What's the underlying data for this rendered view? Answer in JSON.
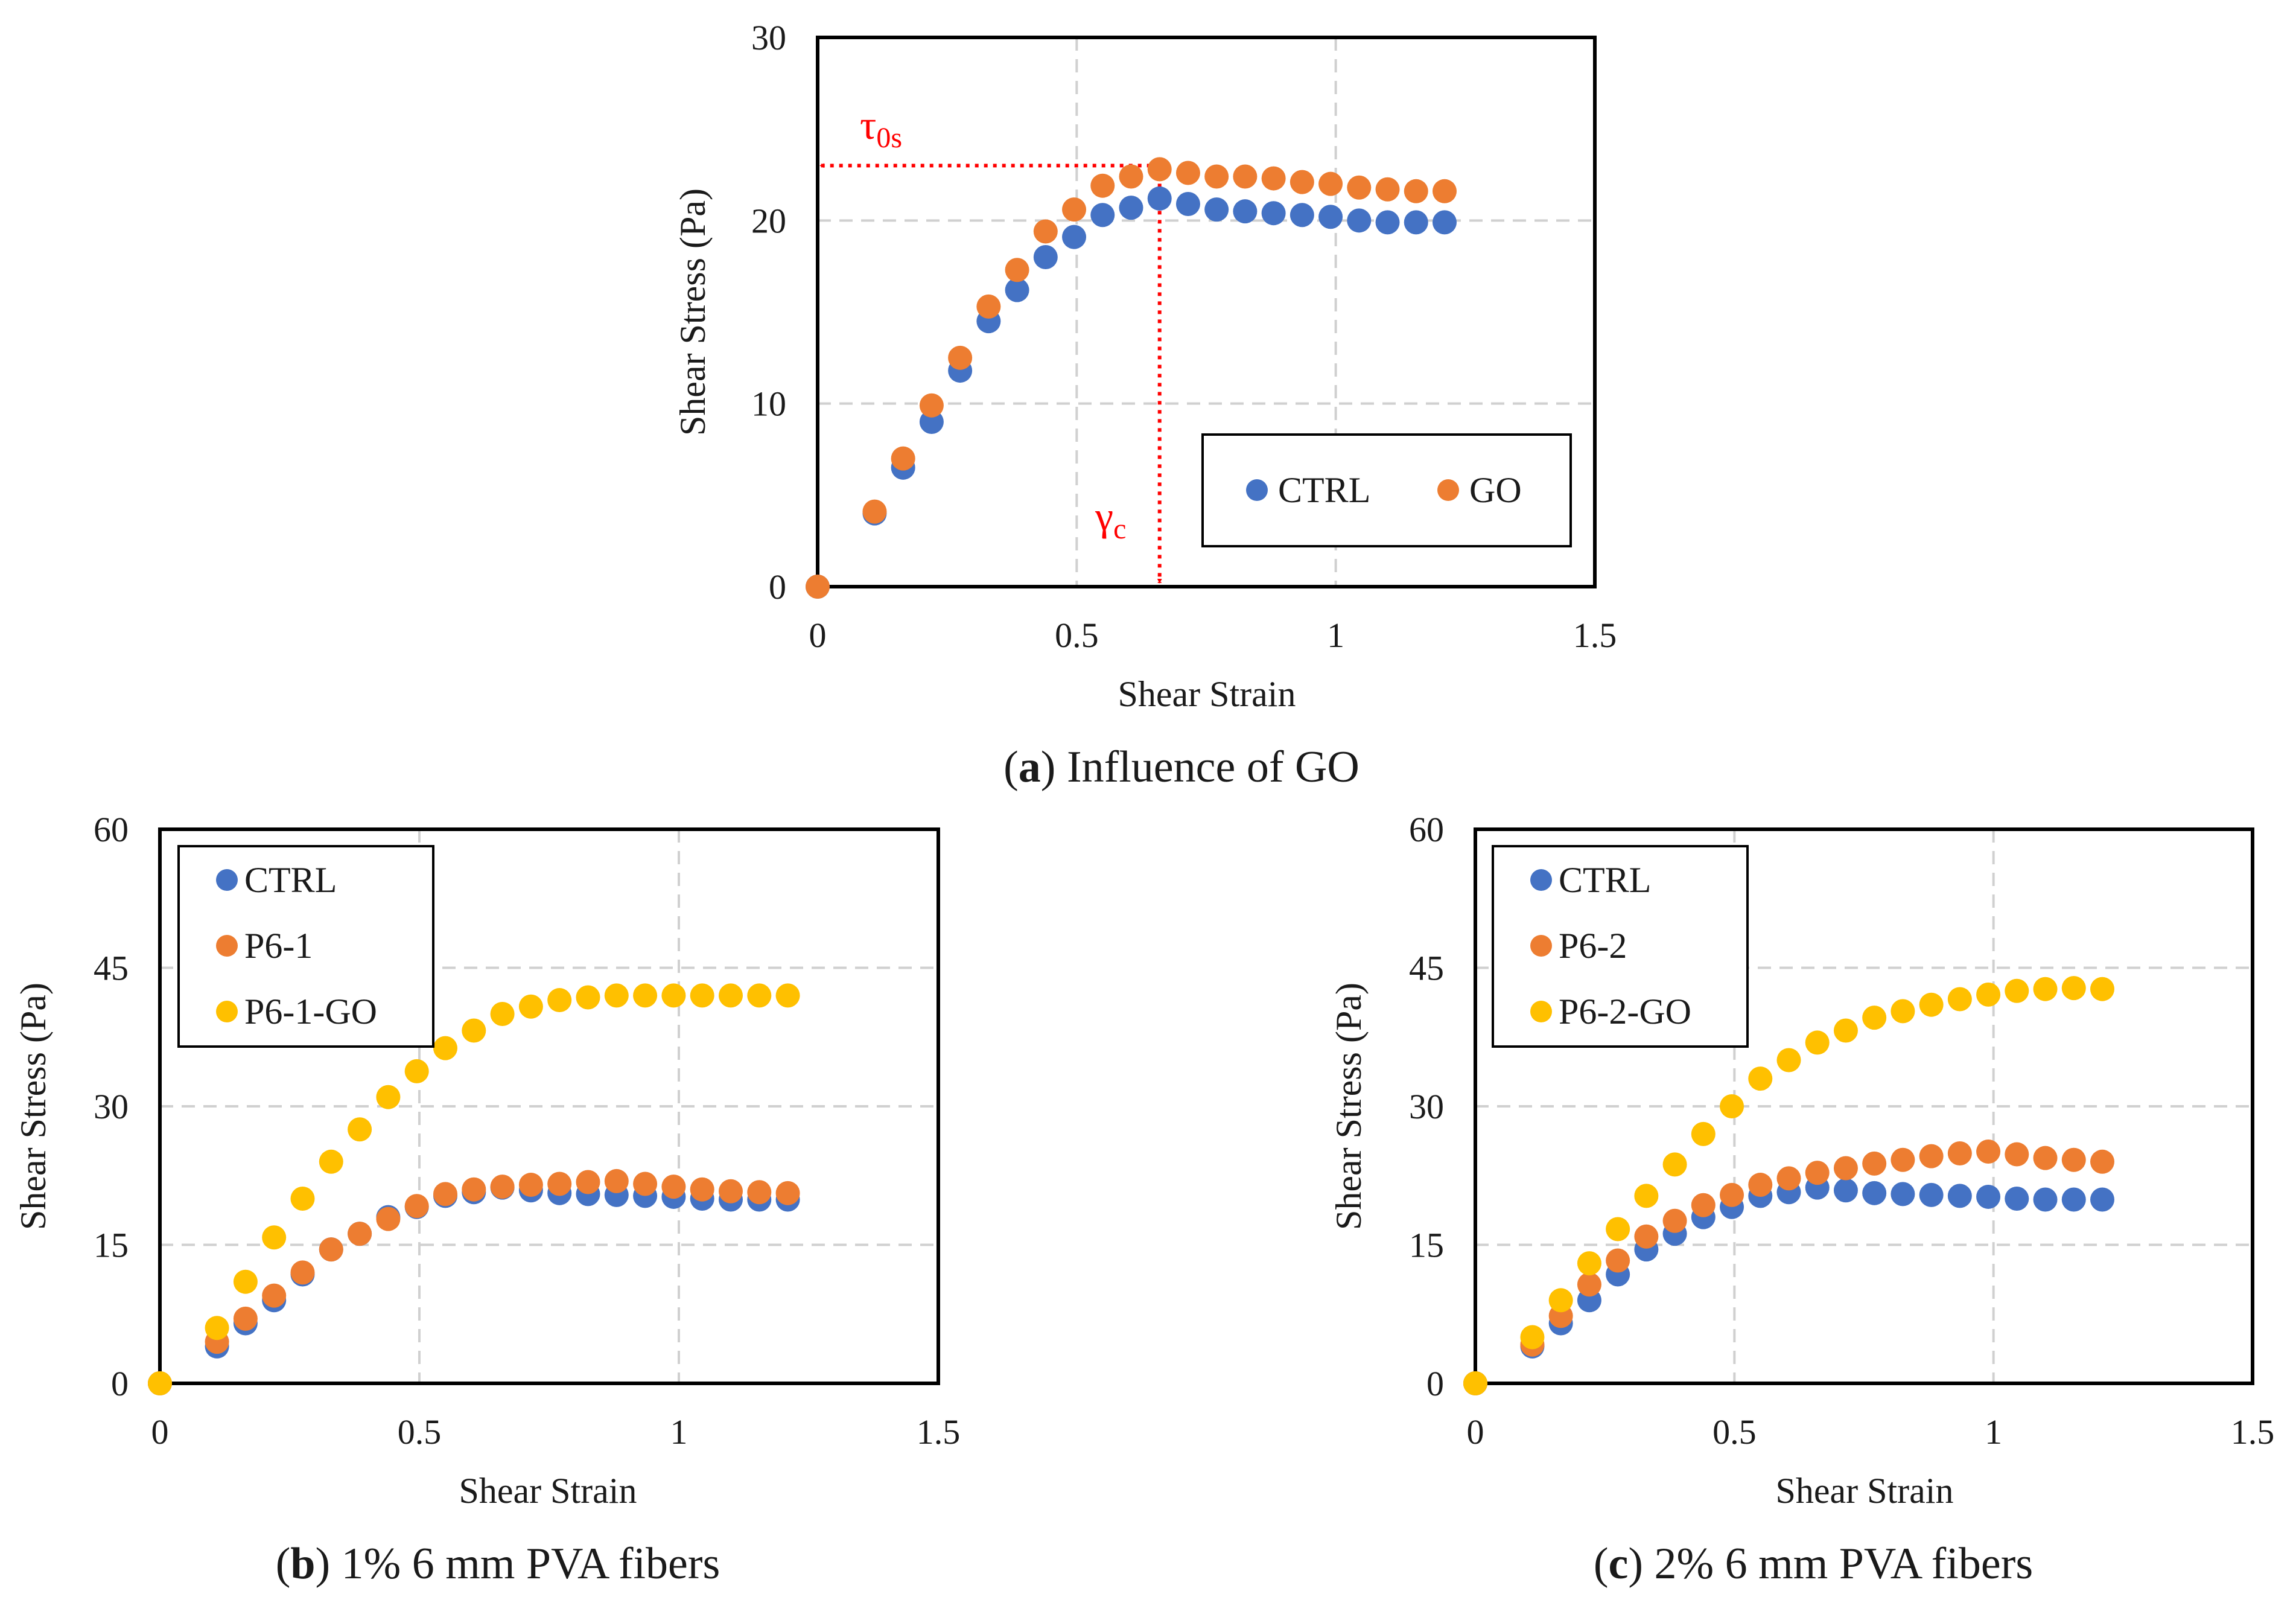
{
  "colors": {
    "CTRL": "#4472C4",
    "GO": "#ED7D31",
    "P6_GO": "#FFC000",
    "annotation": "#FF0000",
    "grid": "#D0D0D0",
    "frame": "#000000"
  },
  "chart_data": [
    {
      "id": "a",
      "type": "scatter",
      "caption_letter": "a",
      "caption_text": ") Influence of GO",
      "xlabel": "Shear Strain",
      "ylabel": "Shear Stress (Pa)",
      "xlim": [
        0,
        1.5
      ],
      "ylim": [
        0,
        30
      ],
      "xticks": [
        0,
        0.5,
        1,
        1.5
      ],
      "xtick_labels": [
        "0",
        "0.5",
        "1",
        "1.5"
      ],
      "yticks": [
        0,
        10,
        20,
        30
      ],
      "ytick_labels": [
        "0",
        "10",
        "20",
        "30"
      ],
      "legend_position": "bottom-right",
      "legend_layout": "horizontal",
      "annotations": {
        "tau_main": "τ",
        "tau_sub": "0s",
        "tau_y": 23,
        "gamma_main": "γ",
        "gamma_sub": "c",
        "gamma_x": 0.66
      },
      "x": [
        0,
        0.11,
        0.165,
        0.22,
        0.275,
        0.33,
        0.385,
        0.44,
        0.495,
        0.55,
        0.605,
        0.66,
        0.715,
        0.77,
        0.825,
        0.88,
        0.935,
        0.99,
        1.045,
        1.1,
        1.155,
        1.21
      ],
      "series": [
        {
          "name": "CTRL",
          "color_key": "CTRL",
          "values": [
            0,
            4,
            6.5,
            9,
            11.8,
            14.5,
            16.2,
            18,
            19.1,
            20.3,
            20.7,
            21.2,
            20.9,
            20.6,
            20.5,
            20.4,
            20.3,
            20.2,
            20.0,
            19.9,
            19.9,
            19.9
          ]
        },
        {
          "name": "GO",
          "color_key": "GO",
          "values": [
            0,
            4.1,
            7,
            9.9,
            12.5,
            15.3,
            17.3,
            19.4,
            20.6,
            21.9,
            22.4,
            22.8,
            22.6,
            22.4,
            22.4,
            22.3,
            22.1,
            22.0,
            21.8,
            21.7,
            21.6,
            21.6
          ]
        }
      ]
    },
    {
      "id": "b",
      "type": "scatter",
      "caption_letter": "b",
      "caption_text": ") 1% 6 mm PVA fibers",
      "xlabel": "Shear Strain",
      "ylabel": "Shear Stress (Pa)",
      "xlim": [
        0,
        1.5
      ],
      "ylim": [
        0,
        60
      ],
      "xticks": [
        0,
        0.5,
        1,
        1.5
      ],
      "xtick_labels": [
        "0",
        "0.5",
        "1",
        "1.5"
      ],
      "yticks": [
        0,
        15,
        30,
        45,
        60
      ],
      "ytick_labels": [
        "0",
        "15",
        "30",
        "45",
        "60"
      ],
      "legend_position": "top-left",
      "legend_layout": "vertical",
      "x": [
        0,
        0.11,
        0.165,
        0.22,
        0.275,
        0.33,
        0.385,
        0.44,
        0.495,
        0.55,
        0.605,
        0.66,
        0.715,
        0.77,
        0.825,
        0.88,
        0.935,
        0.99,
        1.045,
        1.1,
        1.155,
        1.21
      ],
      "series": [
        {
          "name": "CTRL",
          "color_key": "CTRL",
          "values": [
            0,
            4,
            6.5,
            9,
            11.8,
            14.5,
            16.2,
            18,
            19.1,
            20.3,
            20.7,
            21.2,
            20.9,
            20.6,
            20.5,
            20.4,
            20.3,
            20.2,
            20.0,
            19.9,
            19.9,
            19.9
          ]
        },
        {
          "name": "P6-1",
          "color_key": "GO",
          "values": [
            0,
            4.5,
            7,
            9.5,
            12,
            14.5,
            16.2,
            17.8,
            19.2,
            20.5,
            21,
            21.3,
            21.5,
            21.6,
            21.8,
            21.9,
            21.6,
            21.3,
            21.0,
            20.8,
            20.7,
            20.6
          ]
        },
        {
          "name": "P6-1-GO",
          "color_key": "P6_GO",
          "values": [
            0,
            6,
            11,
            15.8,
            20,
            24,
            27.5,
            31,
            33.8,
            36.3,
            38.2,
            40,
            40.8,
            41.5,
            41.8,
            42,
            42,
            42,
            42,
            42,
            42,
            42
          ]
        }
      ]
    },
    {
      "id": "c",
      "type": "scatter",
      "caption_letter": "c",
      "caption_text": ") 2% 6 mm PVA fibers",
      "xlabel": "Shear Strain",
      "ylabel": "Shear Stress (Pa)",
      "xlim": [
        0,
        1.5
      ],
      "ylim": [
        0,
        60
      ],
      "xticks": [
        0,
        0.5,
        1,
        1.5
      ],
      "xtick_labels": [
        "0",
        "0.5",
        "1",
        "1.5"
      ],
      "yticks": [
        0,
        15,
        30,
        45,
        60
      ],
      "ytick_labels": [
        "0",
        "15",
        "30",
        "45",
        "60"
      ],
      "legend_position": "top-left",
      "legend_layout": "vertical",
      "x": [
        0,
        0.11,
        0.165,
        0.22,
        0.275,
        0.33,
        0.385,
        0.44,
        0.495,
        0.55,
        0.605,
        0.66,
        0.715,
        0.77,
        0.825,
        0.88,
        0.935,
        0.99,
        1.045,
        1.1,
        1.155,
        1.21
      ],
      "series": [
        {
          "name": "CTRL",
          "color_key": "CTRL",
          "values": [
            0,
            4,
            6.5,
            9,
            11.8,
            14.5,
            16.2,
            18,
            19.1,
            20.3,
            20.7,
            21.2,
            20.9,
            20.6,
            20.5,
            20.4,
            20.3,
            20.2,
            20.0,
            19.9,
            19.9,
            19.9
          ]
        },
        {
          "name": "P6-2",
          "color_key": "GO",
          "values": [
            0,
            4.2,
            7.3,
            10.7,
            13.3,
            15.9,
            17.6,
            19.3,
            20.4,
            21.5,
            22.2,
            22.8,
            23.3,
            23.8,
            24.2,
            24.6,
            24.9,
            25.1,
            24.8,
            24.4,
            24.2,
            24.0
          ]
        },
        {
          "name": "P6-2-GO",
          "color_key": "P6_GO",
          "values": [
            0,
            5,
            9,
            13,
            16.7,
            20.3,
            23.7,
            27,
            30,
            33,
            35,
            36.9,
            38.2,
            39.6,
            40.3,
            41,
            41.6,
            42.1,
            42.5,
            42.7,
            42.8,
            42.7
          ]
        }
      ]
    }
  ]
}
